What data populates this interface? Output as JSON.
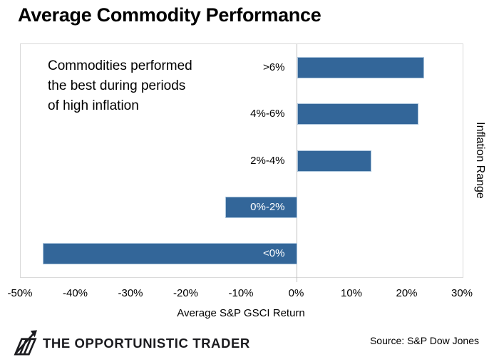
{
  "chart_data": {
    "type": "bar",
    "orientation": "horizontal",
    "title": "Average Commodity Performance",
    "categories": [
      ">6%",
      "4%-6%",
      "2%-4%",
      "0%-2%",
      "<0%"
    ],
    "values": [
      23,
      22,
      13.5,
      -13,
      -46
    ],
    "value_unit": "%",
    "xlabel": "Average S&P GSCI Return",
    "ylabel": "Inflation Range",
    "xlim": [
      -50,
      30
    ],
    "xtick_values": [
      -50,
      -40,
      -30,
      -20,
      -10,
      0,
      10,
      20,
      30
    ],
    "xtick_labels": [
      "-50%",
      "-40%",
      "-30%",
      "-20%",
      "-10%",
      "0%",
      "10%",
      "20%",
      "30%"
    ],
    "annotation_lines": [
      "Commodities performed",
      "the best during periods",
      "of high inflation"
    ],
    "grid": false,
    "legend_position": "none",
    "bar_color": "#336699",
    "bar_border_color": "#aac4dc",
    "plot_border_color": "#d9d9d9",
    "axis_line_color": "#bfbfbf",
    "positive_label_color": "#000000",
    "negative_label_color": "#ffffff"
  },
  "footer": {
    "logo_icon": "hatched-arrow-chart-icon",
    "logo_text": "THE OPPORTUNISTIC TRADER",
    "source": "Source: S&P Dow Jones"
  }
}
